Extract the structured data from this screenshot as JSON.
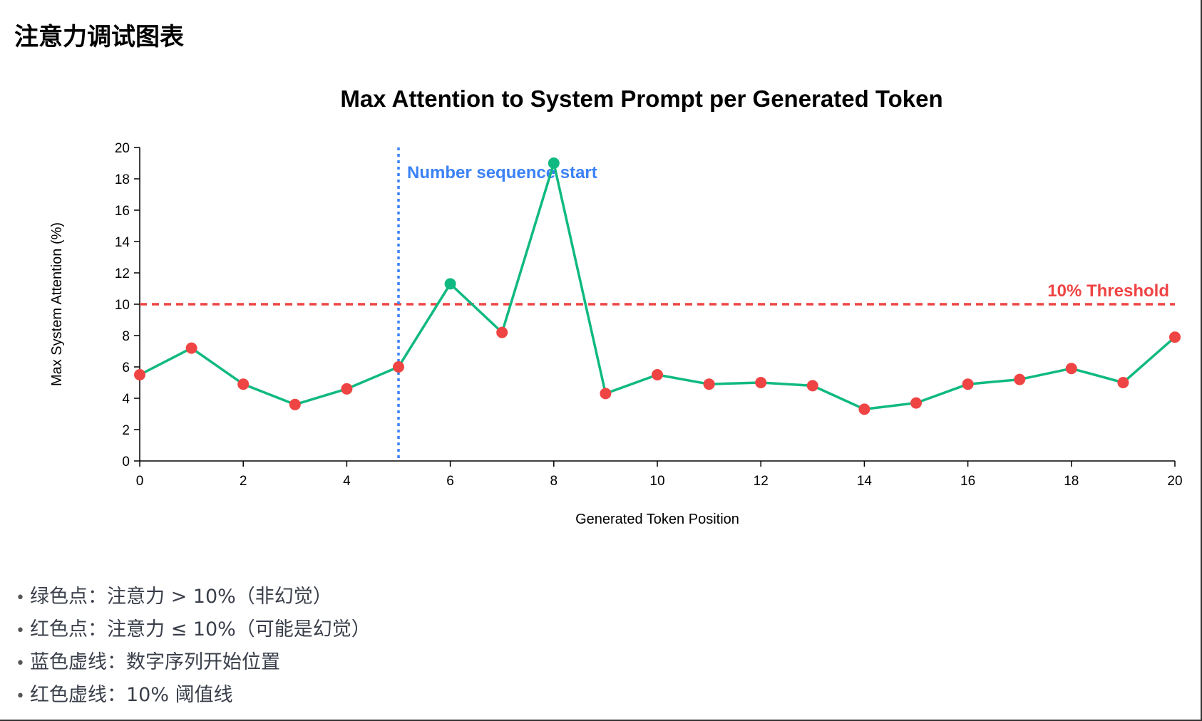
{
  "page": {
    "title": "注意力调试图表"
  },
  "chart_data": {
    "type": "line",
    "title": "Max Attention to System Prompt per Generated Token",
    "xlabel": "Generated Token Position",
    "ylabel": "Max System Attention (%)",
    "xlim": [
      0,
      20
    ],
    "ylim": [
      0,
      20
    ],
    "x_ticks": [
      0,
      2,
      4,
      6,
      8,
      10,
      12,
      14,
      16,
      18,
      20
    ],
    "y_ticks": [
      0,
      2,
      4,
      6,
      8,
      10,
      12,
      14,
      16,
      18,
      20
    ],
    "x": [
      0,
      1,
      2,
      3,
      4,
      5,
      6,
      7,
      8,
      9,
      10,
      11,
      12,
      13,
      14,
      15,
      16,
      17,
      18,
      19,
      20
    ],
    "series": [
      {
        "values": [
          5.5,
          7.2,
          4.9,
          3.6,
          4.6,
          6.0,
          11.3,
          8.2,
          19.0,
          4.3,
          5.5,
          4.9,
          5.0,
          4.8,
          3.3,
          3.7,
          4.9,
          5.2,
          5.9,
          5.0,
          7.9
        ]
      }
    ],
    "threshold": {
      "value": 10,
      "label": "10% Threshold",
      "color": "#ef4444"
    },
    "marker": {
      "x": 5,
      "label": "Number sequence start",
      "color": "#3b82f6"
    },
    "colors": {
      "line": "#10b981",
      "above_threshold": "#10b981",
      "below_threshold": "#ef4444"
    },
    "grid": false
  },
  "legend": {
    "items": [
      "绿色点：注意力 > 10%（非幻觉）",
      "红色点：注意力 ≤ 10%（可能是幻觉）",
      "蓝色虚线：数字序列开始位置",
      "红色虚线：10% 阈值线"
    ]
  }
}
